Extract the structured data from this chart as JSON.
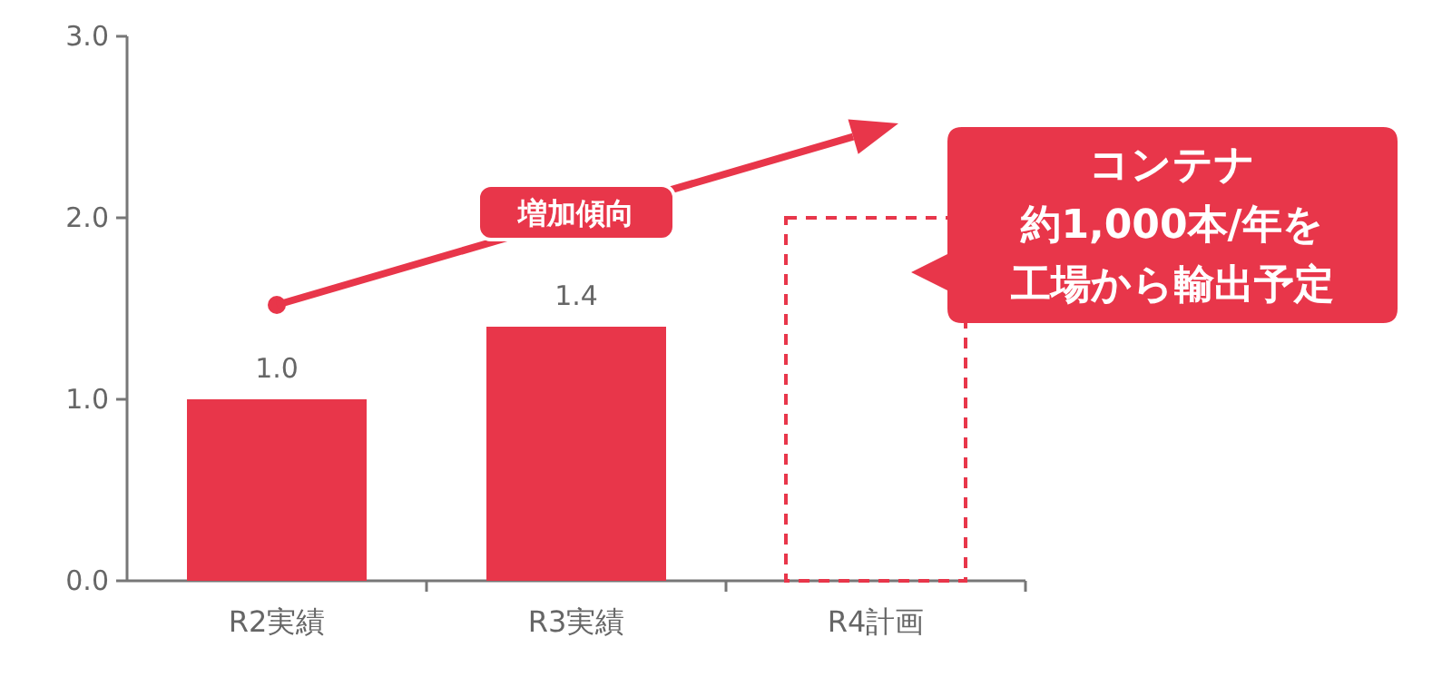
{
  "chart_data": {
    "type": "bar",
    "categories": [
      "R2実績",
      "R3実績",
      "R4計画"
    ],
    "series": [
      {
        "color": "#e8364a",
        "values": [
          1.0,
          1.4,
          null
        ],
        "value_labels": [
          "1.0",
          "1.4",
          null
        ]
      },
      {
        "color": "#e8364a",
        "values": [
          null,
          null,
          2.0
        ],
        "line_style": "dashed"
      }
    ],
    "ylim": [
      0,
      3
    ],
    "yticks": [
      {
        "value": 0,
        "label": "0.0"
      },
      {
        "value": 1,
        "label": "1.0"
      },
      {
        "value": 2,
        "label": "2.0"
      },
      {
        "value": 3,
        "label": "3.0"
      }
    ],
    "grid": false,
    "annotations": [
      "増加傾向",
      "コンテナ",
      "約1,000本/年を",
      "工場から輸出予定"
    ]
  }
}
